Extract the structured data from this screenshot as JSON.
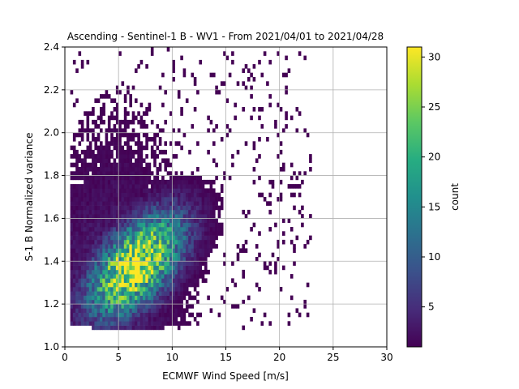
{
  "chart_data": {
    "type": "heatmap",
    "title": "Ascending - Sentinel-1 B - WV1 - From 2021/04/01 to 2021/04/28",
    "xlabel": "ECMWF Wind Speed [m/s]",
    "ylabel": "S-1 B Normalized variance",
    "xlim": [
      0,
      30
    ],
    "ylim": [
      1.0,
      2.4
    ],
    "xticks": [
      0,
      5,
      10,
      15,
      20,
      25,
      30
    ],
    "xtick_labels": [
      "0",
      "5",
      "10",
      "15",
      "20",
      "25",
      "30"
    ],
    "yticks": [
      1.0,
      1.2,
      1.4,
      1.6,
      1.8,
      2.0,
      2.2,
      2.4
    ],
    "ytick_labels": [
      "1.0",
      "1.2",
      "1.4",
      "1.6",
      "1.8",
      "2.0",
      "2.2",
      "2.4"
    ],
    "grid": true,
    "colormap": "viridis",
    "colorbar": {
      "label": "count",
      "min": 1,
      "max": 31,
      "ticks": [
        5,
        10,
        15,
        20,
        25,
        30
      ],
      "tick_labels": [
        "5",
        "10",
        "15",
        "20",
        "25",
        "30"
      ]
    },
    "density_model": {
      "peak_wind_speed": 6.5,
      "peak_variance": 1.37,
      "peak_count": 31
    }
  }
}
